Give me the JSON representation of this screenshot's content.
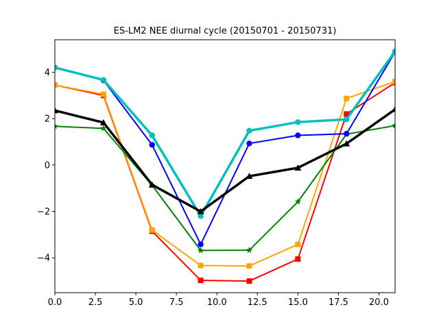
{
  "chart_data": {
    "type": "line",
    "title": "ES-LM2 NEE diurnal cycle (20150701 - 20150731)",
    "xlabel": "",
    "ylabel": "",
    "xlim": [
      0,
      21
    ],
    "ylim": [
      -5.5,
      5.4
    ],
    "x_ticks": [
      0,
      2.5,
      5,
      7.5,
      10,
      12.5,
      15,
      17.5,
      20
    ],
    "x_tick_labels": [
      "0.0",
      "2.5",
      "5.0",
      "7.5",
      "10.0",
      "12.5",
      "15.0",
      "17.5",
      "20.0"
    ],
    "y_ticks": [
      -4,
      -2,
      0,
      2,
      4
    ],
    "y_tick_labels": [
      "−4",
      "−2",
      "0",
      "2",
      "4"
    ],
    "grid": false,
    "x": [
      0,
      3,
      6,
      9,
      12,
      15,
      18,
      21
    ],
    "series": [
      {
        "color": "#ff0000",
        "marker": "square",
        "width": 2,
        "values": [
          3.45,
          3.0,
          -2.85,
          -4.97,
          -5.0,
          -4.05,
          2.2,
          3.55
        ]
      },
      {
        "color": "#ffa500",
        "marker": "square",
        "width": 2,
        "values": [
          3.45,
          3.05,
          -2.8,
          -4.33,
          -4.35,
          -3.42,
          2.87,
          3.6
        ]
      },
      {
        "color": "#008000",
        "marker": "star",
        "width": 2,
        "values": [
          1.67,
          1.58,
          -0.87,
          -3.68,
          -3.67,
          -1.58,
          1.33,
          1.7
        ]
      },
      {
        "color": "#0000ff",
        "marker": "circle",
        "width": 2,
        "values": [
          4.2,
          3.65,
          0.87,
          -3.42,
          0.93,
          1.28,
          1.35,
          4.87
        ]
      },
      {
        "color": "#00bfbf",
        "marker": "circle",
        "width": 3.5,
        "values": [
          4.2,
          3.67,
          1.28,
          -2.2,
          1.48,
          1.85,
          1.97,
          4.9
        ]
      },
      {
        "color": "#000000",
        "marker": "triangle",
        "width": 3.5,
        "values": [
          2.35,
          1.83,
          -0.85,
          -2.0,
          -0.48,
          -0.12,
          0.92,
          2.4
        ]
      }
    ]
  }
}
